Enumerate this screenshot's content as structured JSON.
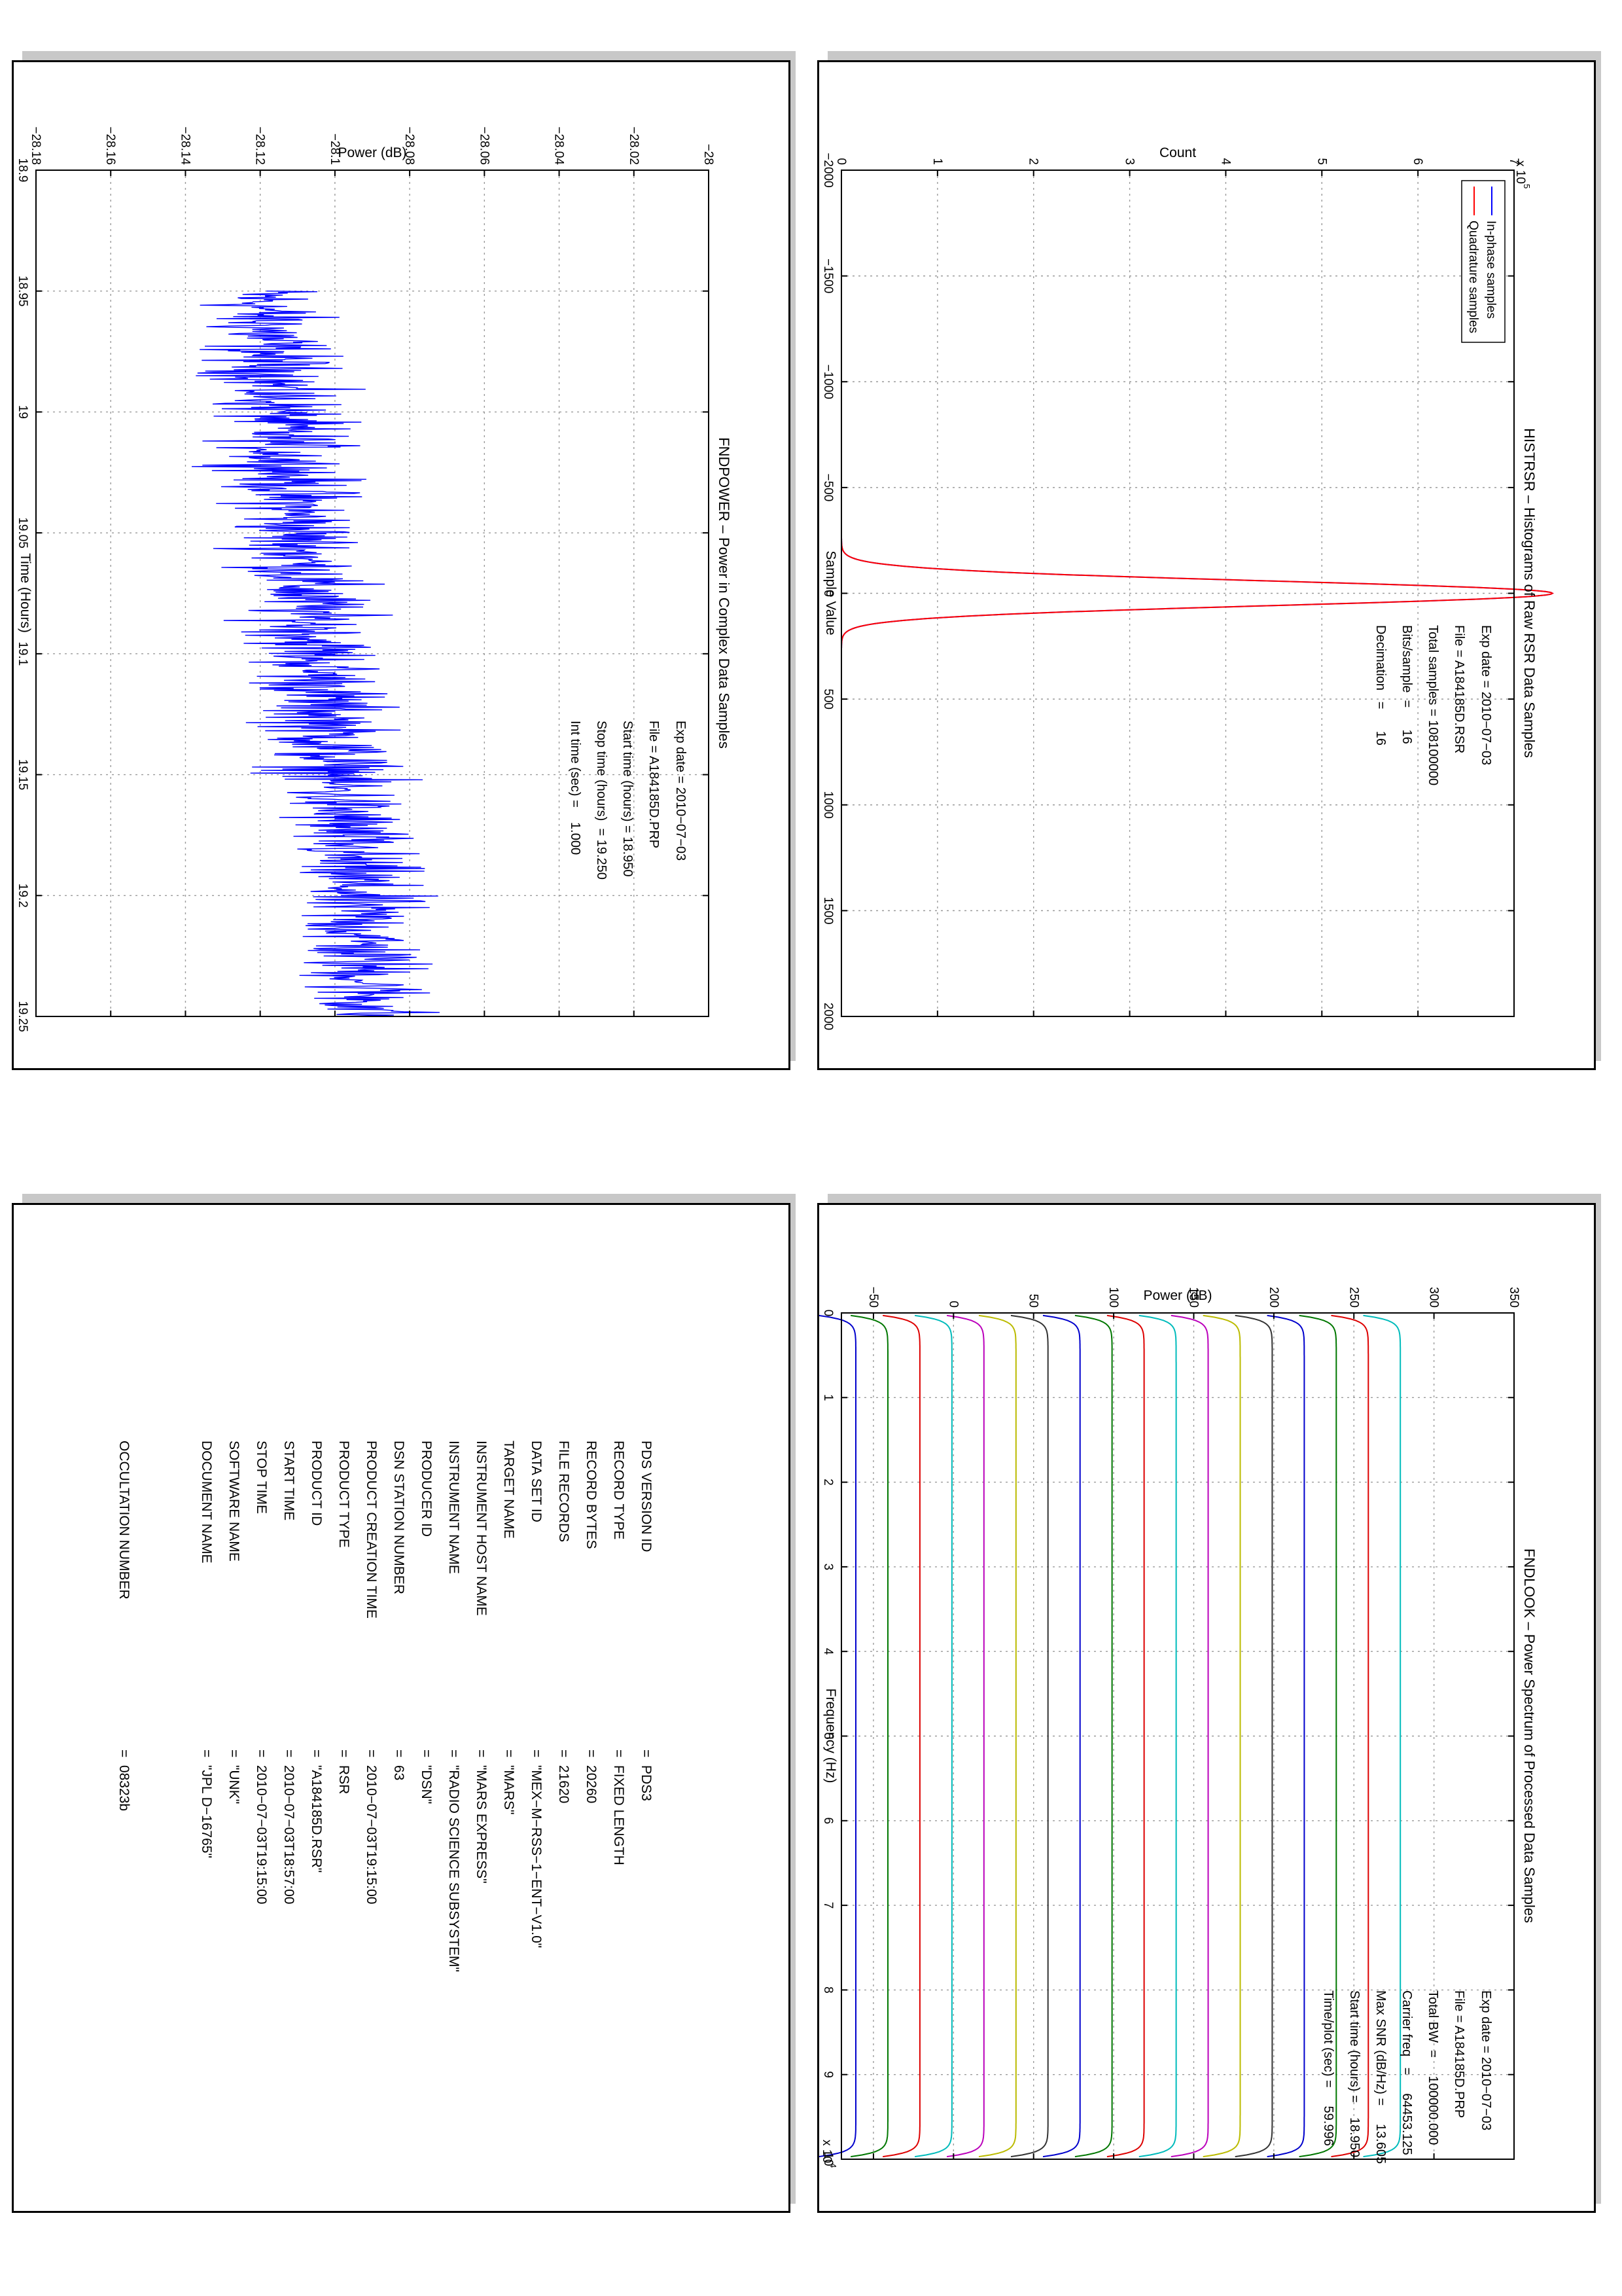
{
  "charts": {
    "histrsr": {
      "type": "line",
      "title": "HISTRSR – Histograms of Raw RSR Data Samples",
      "xlabel": "Sample Value",
      "ylabel": "Count",
      "exponent_base": "x 10",
      "exponent_power": "5",
      "xlim": [
        -2000,
        2000
      ],
      "ylim": [
        0,
        7
      ],
      "xticks": [
        "-2000",
        "-1500",
        "-1000",
        "-500",
        "0",
        "500",
        "1000",
        "1500",
        "2000"
      ],
      "yticks": [
        "0",
        "1",
        "2",
        "3",
        "4",
        "5",
        "6",
        "7"
      ],
      "grid": true,
      "legend": [
        "In-phase samples",
        "Quadrature samples"
      ],
      "legend_position": "top-right",
      "annotations": [
        "Exp date = 2010−07−03",
        "File = A184185D.RSR",
        "Total samples = 108100000",
        "Bits/sample  =      16",
        "Decimation   =      16"
      ],
      "series": [
        {
          "name": "In-phase samples",
          "color": "#0000ff",
          "shape": "gaussian",
          "mean": 0,
          "sigma": 58,
          "peak": 7.4
        },
        {
          "name": "Quadrature samples",
          "color": "#ff0000",
          "shape": "gaussian",
          "mean": 0,
          "sigma": 58,
          "peak": 7.4
        }
      ]
    },
    "fndpower": {
      "type": "line",
      "title": "FNDPOWER – Power in Complex Data Samples",
      "xlabel": "Time (Hours)",
      "ylabel": "Power (dB)",
      "xlim": [
        18.9,
        19.25
      ],
      "ylim": [
        -28.18,
        -28
      ],
      "xticks": [
        "18.9",
        "18.95",
        "19",
        "19.05",
        "19.1",
        "19.15",
        "19.2",
        "19.25"
      ],
      "yticks": [
        "-28.18",
        "-28.16",
        "-28.14",
        "-28.12",
        "-28.1",
        "-28.08",
        "-28.06",
        "-28.04",
        "-28.02",
        "-28"
      ],
      "grid": true,
      "annotations": [
        "Exp date = 2010−07−03",
        "File = A184185D.PRP",
        "Start time (hours) = 18.950",
        "Stop time (hours)  = 19.250",
        "Int time (sec) =    1.000"
      ],
      "series": [
        {
          "color": "#0000ff",
          "x_start": 18.95,
          "x_end": 19.25,
          "samples": 1080,
          "trend_start": -28.12,
          "trend_end": -28.09,
          "spread": 0.018
        }
      ]
    },
    "fndlook": {
      "type": "line",
      "title": "FNDLOOK – Power Spectrum of Processed Data Samples",
      "xlabel": "Frequency (Hz)",
      "ylabel": "Power (dB)",
      "exponent_base": "x 10",
      "exponent_power": "4",
      "xlim": [
        0,
        10
      ],
      "ylim": [
        -70,
        350
      ],
      "xticks": [
        "0",
        "1",
        "2",
        "3",
        "4",
        "5",
        "6",
        "7",
        "8",
        "9",
        "10"
      ],
      "yticks": [
        "-50",
        "0",
        "50",
        "100",
        "150",
        "200",
        "250",
        "300",
        "350"
      ],
      "grid": true,
      "annotations": [
        "Exp date = 2010−07−03",
        "File = A184185D.PRP",
        "Total BW  =     100000.000",
        "Carrier freq   =     64453.125",
        "Max SNR (dB/Hz) =     13.605",
        "Start time (hours) =    18.950",
        "Time/plot (sec) =     59.996"
      ],
      "series": [
        {
          "color": "#0000cc",
          "level": -61
        },
        {
          "color": "#007700",
          "level": -41
        },
        {
          "color": "#dd0000",
          "level": -21
        },
        {
          "color": "#00bbbb",
          "level": -1
        },
        {
          "color": "#bb00bb",
          "level": 19
        },
        {
          "color": "#bbbb00",
          "level": 39
        },
        {
          "color": "#333333",
          "level": 59
        },
        {
          "color": "#0000cc",
          "level": 79
        },
        {
          "color": "#007700",
          "level": 99
        },
        {
          "color": "#dd0000",
          "level": 119
        },
        {
          "color": "#00bbbb",
          "level": 139
        },
        {
          "color": "#bb00bb",
          "level": 159
        },
        {
          "color": "#bbbb00",
          "level": 179
        },
        {
          "color": "#333333",
          "level": 199
        },
        {
          "color": "#0000cc",
          "level": 219
        },
        {
          "color": "#007700",
          "level": 239
        },
        {
          "color": "#dd0000",
          "level": 259
        },
        {
          "color": "#00bbbb",
          "level": 279
        }
      ]
    }
  },
  "label": {
    "keys": [
      "PDS VERSION ID",
      "RECORD TYPE",
      "RECORD BYTES",
      "FILE RECORDS",
      "DATA SET ID",
      "TARGET NAME",
      "INSTRUMENT HOST NAME",
      "INSTRUMENT NAME",
      "PRODUCER ID",
      "DSN STATION NUMBER",
      "PRODUCT CREATION TIME",
      "PRODUCT TYPE",
      "PRODUCT ID",
      "START TIME",
      "STOP TIME",
      "SOFTWARE NAME",
      "DOCUMENT NAME",
      "",
      "",
      "OCCULTATION NUMBER"
    ],
    "values": [
      "=  PDS3",
      "=  FIXED LENGTH",
      "=  20260",
      "=  21620",
      "=  \"MEX−M−RSS−1−ENT−V1.0\"",
      "=  \"MARS\"",
      "=  \"MARS EXPRESS\"",
      "=  \"RADIO SCIENCE SUBSYSTEM\"",
      "=  \"DSN\"",
      "=  63",
      "=  2010−07−03T19:15:00",
      "=  RSR",
      "=  \"A184185D.RSR\"",
      "=  2010−07−03T18:57:00",
      "=  2010−07−03T19:15:00",
      "=  \"UNK\"",
      "=  \"JPL D−16765\"",
      "",
      "",
      "=  08323b"
    ]
  }
}
